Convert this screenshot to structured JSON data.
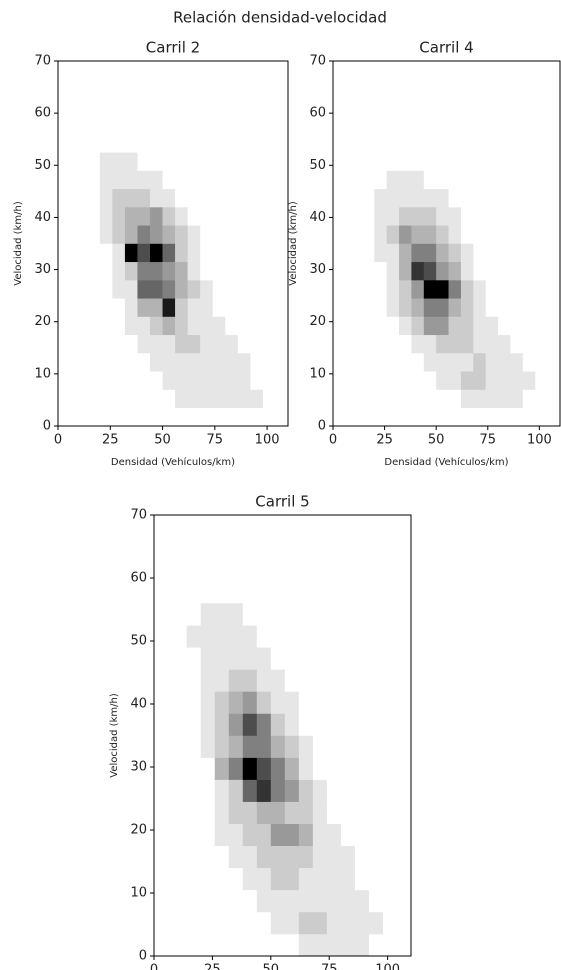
{
  "title": "Relación densidad-velocidad",
  "chart_data": [
    {
      "type": "histogram2d",
      "title": "Carril 2",
      "xlabel": "Densidad (Vehículos/km)",
      "ylabel": "Velocidad (km/h)",
      "cmap": "Greys",
      "xlim": [
        0,
        110
      ],
      "ylim": [
        0,
        70
      ],
      "xticks": [
        0,
        25,
        50,
        75,
        100
      ],
      "yticks": [
        0,
        10,
        20,
        30,
        40,
        50,
        60,
        70
      ],
      "xbins": [
        14,
        20,
        26,
        32,
        38,
        44,
        50,
        56,
        62,
        68,
        74,
        80,
        86,
        92,
        98,
        104
      ],
      "ybins": [
        0,
        3.5,
        7,
        10.5,
        14,
        17.5,
        21,
        24.5,
        28,
        31.5,
        35,
        38.5,
        42,
        45.5,
        49,
        52.5,
        56
      ],
      "counts": [
        [
          0,
          0,
          0,
          0,
          0,
          0,
          0,
          0,
          0,
          0,
          0,
          0,
          0,
          0,
          0
        ],
        [
          0,
          0,
          0,
          0,
          0,
          0,
          0,
          1,
          1,
          1,
          1,
          1,
          1,
          1,
          0
        ],
        [
          0,
          0,
          0,
          0,
          0,
          0,
          1,
          1,
          1,
          1,
          1,
          1,
          1,
          0,
          0
        ],
        [
          0,
          0,
          0,
          0,
          0,
          1,
          1,
          1,
          1,
          1,
          1,
          1,
          1,
          0,
          0
        ],
        [
          0,
          0,
          0,
          0,
          1,
          1,
          1,
          2,
          2,
          1,
          1,
          1,
          0,
          0,
          0
        ],
        [
          0,
          0,
          0,
          1,
          1,
          2,
          3,
          2,
          1,
          1,
          1,
          0,
          0,
          0,
          0
        ],
        [
          0,
          0,
          0,
          1,
          3,
          3,
          9,
          2,
          1,
          1,
          0,
          0,
          0,
          0,
          0
        ],
        [
          0,
          0,
          1,
          1,
          6,
          6,
          5,
          3,
          2,
          1,
          0,
          0,
          0,
          0,
          0
        ],
        [
          0,
          0,
          1,
          2,
          5,
          5,
          4,
          3,
          1,
          0,
          0,
          0,
          0,
          0,
          0
        ],
        [
          0,
          0,
          1,
          10,
          7,
          10,
          6,
          2,
          1,
          0,
          0,
          0,
          0,
          0,
          0
        ],
        [
          0,
          1,
          2,
          3,
          5,
          4,
          3,
          2,
          1,
          0,
          0,
          0,
          0,
          0,
          0
        ],
        [
          0,
          1,
          2,
          3,
          3,
          4,
          2,
          1,
          0,
          0,
          0,
          0,
          0,
          0,
          0
        ],
        [
          0,
          1,
          2,
          2,
          2,
          1,
          1,
          0,
          0,
          0,
          0,
          0,
          0,
          0,
          0
        ],
        [
          0,
          1,
          1,
          1,
          1,
          1,
          0,
          0,
          0,
          0,
          0,
          0,
          0,
          0,
          0
        ],
        [
          0,
          1,
          1,
          1,
          0,
          0,
          0,
          0,
          0,
          0,
          0,
          0,
          0,
          0,
          0
        ],
        [
          0,
          0,
          0,
          0,
          0,
          0,
          0,
          0,
          0,
          0,
          0,
          0,
          0,
          0,
          0
        ]
      ]
    },
    {
      "type": "histogram2d",
      "title": "Carril 4",
      "xlabel": "Densidad (Vehículos/km)",
      "ylabel": "Velocidad (km/h)",
      "cmap": "Greys",
      "xlim": [
        0,
        110
      ],
      "ylim": [
        0,
        70
      ],
      "xticks": [
        0,
        25,
        50,
        75,
        100
      ],
      "yticks": [
        0,
        10,
        20,
        30,
        40,
        50,
        60,
        70
      ],
      "xbins": [
        14,
        20,
        26,
        32,
        38,
        44,
        50,
        56,
        62,
        68,
        74,
        80,
        86,
        92,
        98,
        104
      ],
      "ybins": [
        0,
        3.5,
        7,
        10.5,
        14,
        17.5,
        21,
        24.5,
        28,
        31.5,
        35,
        38.5,
        42,
        45.5,
        49,
        52.5,
        56
      ],
      "counts": [
        [
          0,
          0,
          0,
          0,
          0,
          0,
          0,
          0,
          0,
          0,
          0,
          0,
          0,
          0,
          0
        ],
        [
          0,
          0,
          0,
          0,
          0,
          0,
          0,
          0,
          1,
          1,
          1,
          1,
          1,
          0,
          0
        ],
        [
          0,
          0,
          0,
          0,
          0,
          0,
          1,
          1,
          2,
          2,
          1,
          1,
          1,
          1,
          0
        ],
        [
          0,
          0,
          0,
          0,
          0,
          1,
          1,
          1,
          1,
          2,
          1,
          1,
          1,
          0,
          0
        ],
        [
          0,
          0,
          0,
          0,
          1,
          1,
          2,
          2,
          2,
          1,
          1,
          1,
          0,
          0,
          0
        ],
        [
          0,
          0,
          0,
          1,
          2,
          4,
          4,
          2,
          2,
          1,
          1,
          0,
          0,
          0,
          0
        ],
        [
          0,
          0,
          1,
          2,
          3,
          5,
          5,
          3,
          2,
          1,
          0,
          0,
          0,
          0,
          0
        ],
        [
          0,
          0,
          1,
          2,
          4,
          10,
          10,
          5,
          2,
          1,
          0,
          0,
          0,
          0,
          0
        ],
        [
          0,
          0,
          1,
          3,
          8,
          7,
          4,
          3,
          1,
          0,
          0,
          0,
          0,
          0,
          0
        ],
        [
          0,
          1,
          1,
          3,
          5,
          5,
          3,
          2,
          1,
          0,
          0,
          0,
          0,
          0,
          0
        ],
        [
          0,
          1,
          2,
          4,
          3,
          3,
          2,
          1,
          0,
          0,
          0,
          0,
          0,
          0,
          0
        ],
        [
          0,
          1,
          1,
          2,
          2,
          2,
          1,
          1,
          0,
          0,
          0,
          0,
          0,
          0,
          0
        ],
        [
          0,
          1,
          1,
          1,
          1,
          1,
          1,
          0,
          0,
          0,
          0,
          0,
          0,
          0,
          0
        ],
        [
          0,
          0,
          1,
          1,
          1,
          0,
          0,
          0,
          0,
          0,
          0,
          0,
          0,
          0,
          0
        ],
        [
          0,
          0,
          0,
          0,
          0,
          0,
          0,
          0,
          0,
          0,
          0,
          0,
          0,
          0,
          0
        ],
        [
          0,
          0,
          0,
          0,
          0,
          0,
          0,
          0,
          0,
          0,
          0,
          0,
          0,
          0,
          0
        ]
      ]
    },
    {
      "type": "histogram2d",
      "title": "Carril 5",
      "xlabel": "Densidad (Vehículos/km)",
      "ylabel": "Velocidad (km/h)",
      "cmap": "Greys",
      "xlim": [
        0,
        110
      ],
      "ylim": [
        0,
        70
      ],
      "xticks": [
        0,
        25,
        50,
        75,
        100
      ],
      "yticks": [
        0,
        10,
        20,
        30,
        40,
        50,
        60,
        70
      ],
      "xbins": [
        14,
        20,
        26,
        32,
        38,
        44,
        50,
        56,
        62,
        68,
        74,
        80,
        86,
        92,
        98,
        104
      ],
      "ybins": [
        0,
        3.5,
        7,
        10.5,
        14,
        17.5,
        21,
        24.5,
        28,
        31.5,
        35,
        38.5,
        42,
        45.5,
        49,
        52.5,
        56
      ],
      "counts": [
        [
          0,
          0,
          0,
          0,
          0,
          0,
          0,
          0,
          1,
          1,
          1,
          1,
          1,
          0,
          0
        ],
        [
          0,
          0,
          0,
          0,
          0,
          0,
          1,
          1,
          2,
          2,
          1,
          1,
          1,
          1,
          0
        ],
        [
          0,
          0,
          0,
          0,
          0,
          1,
          1,
          1,
          1,
          1,
          1,
          1,
          1,
          0,
          0
        ],
        [
          0,
          0,
          0,
          0,
          1,
          1,
          2,
          2,
          1,
          1,
          1,
          1,
          0,
          0,
          0
        ],
        [
          0,
          0,
          0,
          1,
          1,
          2,
          2,
          2,
          2,
          1,
          1,
          1,
          0,
          0,
          0
        ],
        [
          0,
          0,
          1,
          1,
          2,
          2,
          4,
          4,
          3,
          1,
          1,
          0,
          0,
          0,
          0
        ],
        [
          0,
          0,
          1,
          2,
          2,
          3,
          3,
          2,
          2,
          1,
          0,
          0,
          0,
          0,
          0
        ],
        [
          0,
          0,
          1,
          2,
          6,
          8,
          5,
          4,
          2,
          1,
          0,
          0,
          0,
          0,
          0
        ],
        [
          0,
          0,
          3,
          5,
          10,
          7,
          5,
          3,
          1,
          0,
          0,
          0,
          0,
          0,
          0
        ],
        [
          0,
          1,
          2,
          3,
          5,
          5,
          3,
          2,
          1,
          0,
          0,
          0,
          0,
          0,
          0
        ],
        [
          0,
          1,
          2,
          4,
          7,
          5,
          2,
          1,
          0,
          0,
          0,
          0,
          0,
          0,
          0
        ],
        [
          0,
          1,
          2,
          3,
          4,
          2,
          1,
          1,
          0,
          0,
          0,
          0,
          0,
          0,
          0
        ],
        [
          0,
          1,
          1,
          2,
          2,
          1,
          1,
          0,
          0,
          0,
          0,
          0,
          0,
          0,
          0
        ],
        [
          0,
          1,
          1,
          1,
          1,
          1,
          0,
          0,
          0,
          0,
          0,
          0,
          0,
          0,
          0
        ],
        [
          1,
          1,
          1,
          1,
          1,
          0,
          0,
          0,
          0,
          0,
          0,
          0,
          0,
          0,
          0
        ],
        [
          0,
          1,
          1,
          1,
          0,
          0,
          0,
          0,
          0,
          0,
          0,
          0,
          0,
          0,
          0
        ]
      ]
    }
  ]
}
